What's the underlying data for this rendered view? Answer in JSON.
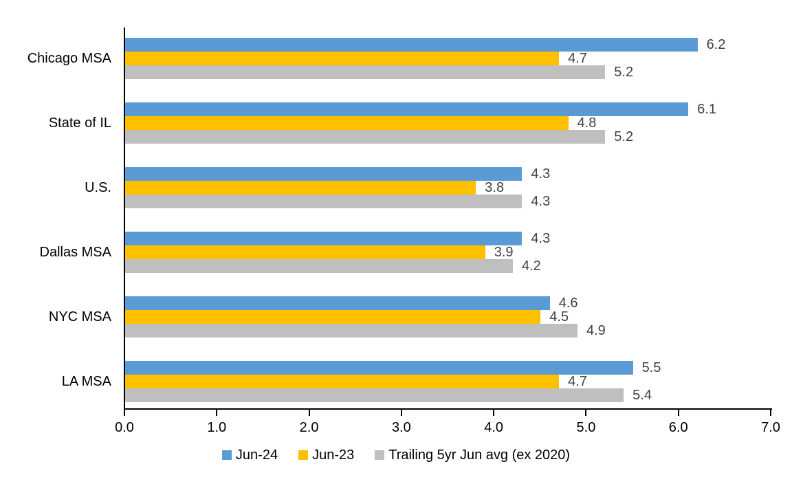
{
  "chart_data": {
    "type": "bar",
    "orientation": "horizontal",
    "title": "",
    "categories": [
      "Chicago MSA",
      "State of IL",
      "U.S.",
      "Dallas MSA",
      "NYC MSA",
      "LA MSA"
    ],
    "series": [
      {
        "name": "Jun-24",
        "color": "#5B9BD5",
        "values": [
          6.2,
          6.1,
          4.3,
          4.3,
          4.6,
          5.5
        ]
      },
      {
        "name": "Jun-23",
        "color": "#FFC000",
        "values": [
          4.7,
          4.8,
          3.8,
          3.9,
          4.5,
          4.7
        ]
      },
      {
        "name": "Trailing 5yr Jun avg (ex 2020)",
        "color": "#BFBFBF",
        "values": [
          5.2,
          5.2,
          4.3,
          4.2,
          4.9,
          5.4
        ]
      }
    ],
    "xlim": [
      0,
      7
    ],
    "xtick_labels": [
      "0.0",
      "1.0",
      "2.0",
      "3.0",
      "4.0",
      "5.0",
      "6.0",
      "7.0"
    ],
    "grid": false,
    "data_labels": true,
    "data_label_color": "#404040",
    "axis_color": "#000000",
    "legend_position": "bottom"
  }
}
